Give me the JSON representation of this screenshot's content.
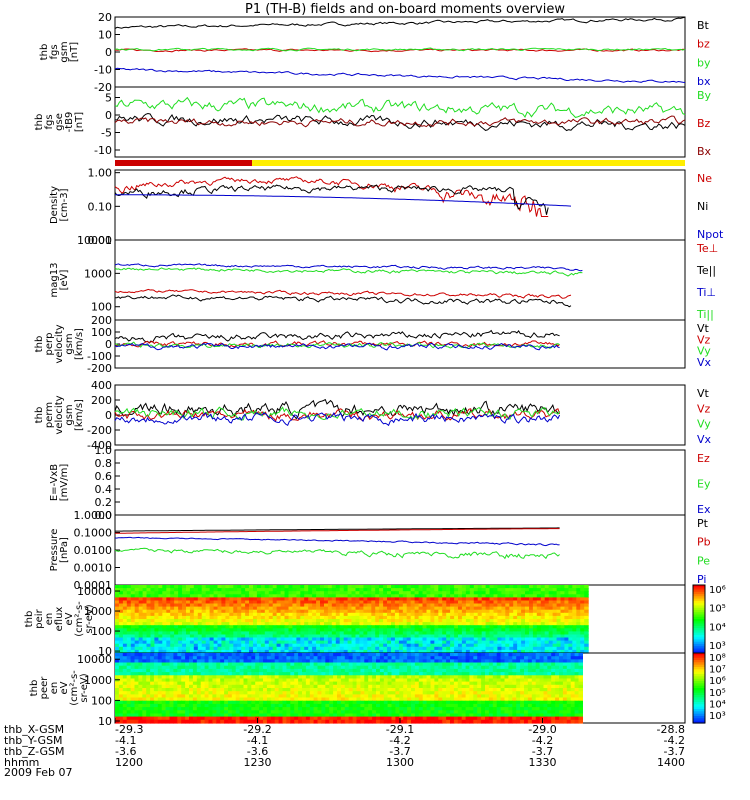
{
  "title": "P1 (TH-B) fields and on-board moments overview",
  "footer": {
    "rows": [
      {
        "label": "thb_X-GSM",
        "values": [
          "-29.3",
          "-29.2",
          "-29.1",
          "-29.0",
          "-28.8"
        ]
      },
      {
        "label": "thb_Y-GSM",
        "values": [
          "-4.1",
          "-4.1",
          "-4.2",
          "-4.2",
          "-4.2"
        ]
      },
      {
        "label": "thb_Z-GSM",
        "values": [
          "-3.6",
          "-3.6",
          "-3.7",
          "-3.7",
          "-3.7"
        ]
      },
      {
        "label": "hhmm",
        "values": [
          "1200",
          "1230",
          "1300",
          "1330",
          "1400"
        ]
      }
    ],
    "date": "2009 Feb 07"
  },
  "colors": {
    "black": "#000000",
    "red": "#cc0000",
    "green": "#22dd22",
    "blue": "#0000cc",
    "dark_red": "#8b0000",
    "yellow": "#ffee00"
  },
  "chart_data": [
    {
      "type": "line",
      "id": "p1",
      "ylabel": [
        "thb",
        "fgs",
        "gsm",
        "[nT]"
      ],
      "yticks": [
        "20",
        "10",
        "0",
        "-10",
        "-20"
      ],
      "ylim": [
        -20,
        20
      ],
      "legend": [
        {
          "label": "Bt",
          "color": "#000000"
        },
        {
          "label": "bz",
          "color": "#cc0000"
        },
        {
          "label": "by",
          "color": "#22dd22"
        },
        {
          "label": "bx",
          "color": "#0000cc"
        }
      ]
    },
    {
      "type": "line",
      "id": "p2",
      "ylabel": [
        "thb",
        "fgs",
        "gse",
        "-tB9",
        "[nT]"
      ],
      "yticks": [
        "5",
        "0",
        "-5",
        "-10"
      ],
      "ylim": [
        -12,
        8
      ],
      "legend": [
        {
          "label": "By",
          "color": "#22dd22"
        },
        {
          "label": "Bz",
          "color": "#cc0000"
        },
        {
          "label": "Bx",
          "color": "#8b0000"
        }
      ]
    },
    {
      "type": "line",
      "id": "p3",
      "ylabel": [
        "Density",
        "[cm-3]"
      ],
      "yticks": [
        "1.00",
        "0.10",
        "0.01"
      ],
      "ylim": [
        0.01,
        1.2
      ],
      "ylog": true,
      "legend": [
        {
          "label": "Ne",
          "color": "#cc0000"
        },
        {
          "label": "Ni",
          "color": "#000000"
        },
        {
          "label": "Npot",
          "color": "#0000cc"
        }
      ]
    },
    {
      "type": "line",
      "id": "p4",
      "ylabel": [
        "mag13",
        "[eV]"
      ],
      "yticks": [
        "10000",
        "1000",
        "100"
      ],
      "ylim": [
        40,
        10000
      ],
      "ylog": true,
      "legend": [
        {
          "label": "Te⊥",
          "color": "#cc0000"
        },
        {
          "label": "Te||",
          "color": "#000000"
        },
        {
          "label": "Ti⊥",
          "color": "#0000cc"
        },
        {
          "label": "Ti||",
          "color": "#22dd22"
        }
      ]
    },
    {
      "type": "line",
      "id": "p5",
      "ylabel": [
        "thb",
        "perp",
        "velocity",
        "gsm",
        "[km/s]"
      ],
      "yticks": [
        "200",
        "100",
        "0",
        "-100",
        "-200"
      ],
      "ylim": [
        -200,
        200
      ],
      "legend": [
        {
          "label": "Vt",
          "color": "#000000"
        },
        {
          "label": "Vz",
          "color": "#cc0000"
        },
        {
          "label": "Vy",
          "color": "#22dd22"
        },
        {
          "label": "Vx",
          "color": "#0000cc"
        }
      ]
    },
    {
      "type": "line",
      "id": "p6",
      "ylabel": [
        "thb",
        "perm",
        "velocity",
        "gsm",
        "[km/s]"
      ],
      "yticks": [
        "400",
        "200",
        "0",
        "-200",
        "-400"
      ],
      "ylim": [
        -400,
        400
      ],
      "legend": [
        {
          "label": "Vt",
          "color": "#000000"
        },
        {
          "label": "Vz",
          "color": "#cc0000"
        },
        {
          "label": "Vy",
          "color": "#22dd22"
        },
        {
          "label": "Vx",
          "color": "#0000cc"
        }
      ]
    },
    {
      "type": "line",
      "id": "p7",
      "ylabel": [
        "E=-VxB",
        "[mV/m]"
      ],
      "yticks": [
        "1.0",
        "0.8",
        "0.6",
        "0.4",
        "0.2",
        "0.0"
      ],
      "ylim": [
        0,
        1
      ],
      "legend": [
        {
          "label": "Ez",
          "color": "#cc0000"
        },
        {
          "label": "Ey",
          "color": "#22dd22"
        },
        {
          "label": "Ex",
          "color": "#0000cc"
        }
      ]
    },
    {
      "type": "line",
      "id": "p8",
      "ylabel": [
        "Pressure",
        "[nPa]"
      ],
      "yticks": [
        "1.0000",
        "0.1000",
        "0.0100",
        "0.0010",
        "0.0001"
      ],
      "ylim": [
        0.0001,
        1
      ],
      "ylog": true,
      "legend": [
        {
          "label": "Pt",
          "color": "#000000"
        },
        {
          "label": "Pb",
          "color": "#cc0000"
        },
        {
          "label": "Pe",
          "color": "#22dd22"
        },
        {
          "label": "Pi",
          "color": "#0000cc"
        }
      ]
    },
    {
      "type": "heatmap",
      "id": "p9",
      "ylabel": [
        "thb",
        "peir",
        "en",
        "eflux",
        "eV",
        "(cm²-s-",
        "sr-eV)"
      ],
      "yticks": [
        "10000",
        "1000",
        "100",
        "10"
      ],
      "ylim": [
        8,
        20000
      ],
      "ylog": true,
      "colorbar": [
        "10⁶",
        "10⁵",
        "10⁴",
        "10³"
      ]
    },
    {
      "type": "heatmap",
      "id": "p10",
      "ylabel": [
        "thb",
        "peer",
        "en",
        "eV",
        "(cm²-s-",
        "sr-eV)"
      ],
      "yticks": [
        "10000",
        "1000",
        "100",
        "10"
      ],
      "ylim": [
        8,
        20000
      ],
      "ylog": true,
      "colorbar": [
        "10⁸",
        "10⁷",
        "10⁶",
        "10⁵",
        "10⁴",
        "10³"
      ]
    }
  ]
}
